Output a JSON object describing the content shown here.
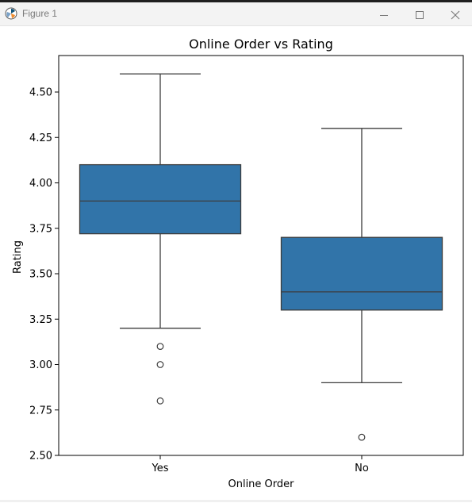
{
  "window": {
    "title": "Figure 1",
    "controls": {
      "minimize": "minimize-icon",
      "maximize": "maximize-icon",
      "close": "close-icon"
    }
  },
  "chart_data": {
    "type": "box",
    "title": "Online Order vs Rating",
    "xlabel": "Online Order",
    "ylabel": "Rating",
    "ylim": [
      2.5,
      4.7
    ],
    "yticks": [
      "2.50",
      "2.75",
      "3.00",
      "3.25",
      "3.50",
      "3.75",
      "4.00",
      "4.25",
      "4.50"
    ],
    "categories": [
      "Yes",
      "No"
    ],
    "color": "#3174a9",
    "grid": false,
    "boxes": [
      {
        "category": "Yes",
        "whisker_low": 3.2,
        "q1": 3.72,
        "median": 3.9,
        "q3": 4.1,
        "whisker_high": 4.6,
        "outliers": [
          3.1,
          3.0,
          2.8
        ]
      },
      {
        "category": "No",
        "whisker_low": 2.9,
        "q1": 3.3,
        "median": 3.4,
        "q3": 3.7,
        "whisker_high": 4.3,
        "outliers": [
          2.6
        ]
      }
    ]
  }
}
